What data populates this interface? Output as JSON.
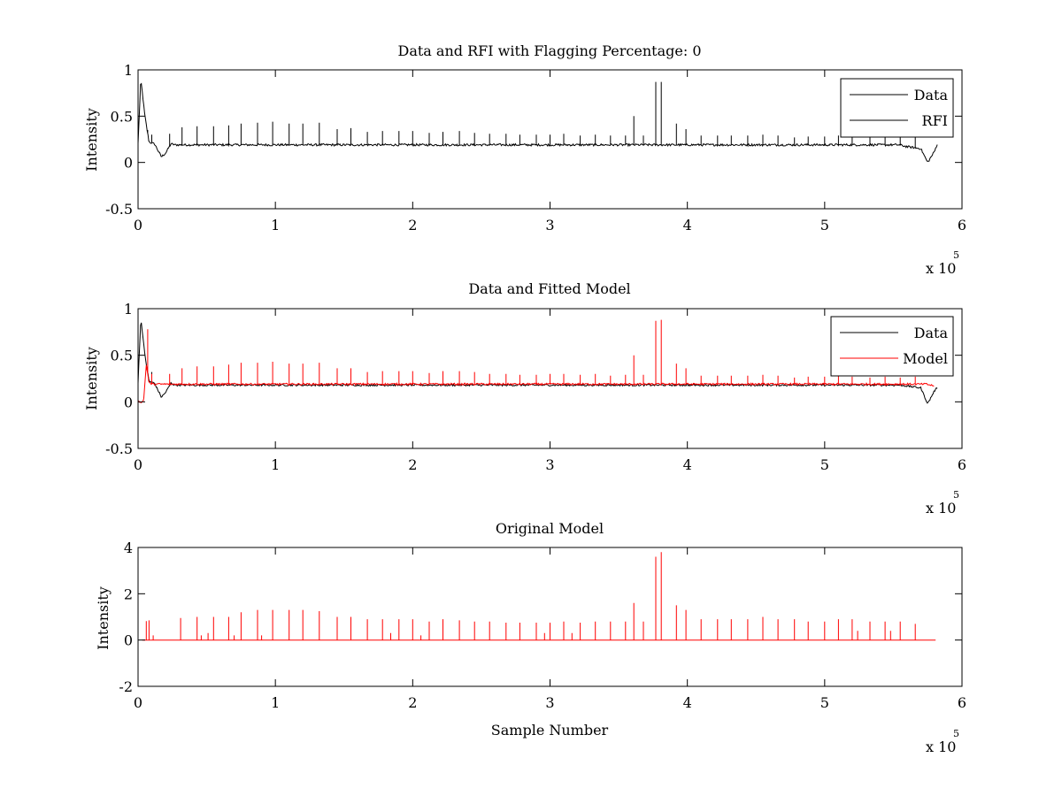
{
  "chart_data": [
    {
      "type": "line",
      "title": "Data and RFI with Flagging Percentage: 0",
      "xlabel": "",
      "ylabel": "Intensity",
      "xlim": [
        0,
        600000
      ],
      "ylim": [
        -0.5,
        1
      ],
      "xticks": [
        0,
        1,
        2,
        3,
        4,
        5,
        6
      ],
      "yticks": [
        -0.5,
        0,
        0.5,
        1
      ],
      "xtick_labels": [
        "0",
        "1",
        "2",
        "3",
        "4",
        "5",
        "6"
      ],
      "ytick_labels": [
        "-0.5",
        "0",
        "0.5",
        "1"
      ],
      "x_exponent": {
        "base": "x 10",
        "power": "5"
      },
      "legend": {
        "position": "top-right",
        "entries": [
          "Data",
          "RFI"
        ]
      },
      "grid": false,
      "series": [
        {
          "name": "Data",
          "color": "#000000",
          "baseline": 0.19,
          "points": [
            [
              0,
              0.2
            ],
            [
              2000,
              0.9
            ],
            [
              5000,
              0.5
            ],
            [
              8000,
              0.22
            ],
            [
              12000,
              0.2
            ],
            [
              17000,
              0.06
            ],
            [
              20000,
              0.1
            ],
            [
              24000,
              0.2
            ],
            [
              560000,
              0.17
            ],
            [
              570000,
              0.15
            ],
            [
              575000,
              0.0
            ],
            [
              580000,
              0.12
            ],
            [
              582000,
              0.2
            ]
          ],
          "spikes": [
            [
              7000,
              0.35
            ],
            [
              10000,
              0.3
            ],
            [
              23000,
              0.31
            ],
            [
              32000,
              0.38
            ],
            [
              43000,
              0.39
            ],
            [
              55000,
              0.39
            ],
            [
              66000,
              0.4
            ],
            [
              75000,
              0.42
            ],
            [
              87000,
              0.43
            ],
            [
              98000,
              0.44
            ],
            [
              110000,
              0.42
            ],
            [
              120000,
              0.42
            ],
            [
              132000,
              0.43
            ],
            [
              145000,
              0.36
            ],
            [
              155000,
              0.37
            ],
            [
              167000,
              0.33
            ],
            [
              178000,
              0.34
            ],
            [
              190000,
              0.34
            ],
            [
              200000,
              0.34
            ],
            [
              212000,
              0.32
            ],
            [
              222000,
              0.33
            ],
            [
              234000,
              0.34
            ],
            [
              245000,
              0.32
            ],
            [
              256000,
              0.31
            ],
            [
              268000,
              0.31
            ],
            [
              278000,
              0.3
            ],
            [
              290000,
              0.3
            ],
            [
              300000,
              0.3
            ],
            [
              310000,
              0.31
            ],
            [
              322000,
              0.29
            ],
            [
              333000,
              0.3
            ],
            [
              344000,
              0.29
            ],
            [
              355000,
              0.29
            ],
            [
              361000,
              0.5
            ],
            [
              368000,
              0.29
            ],
            [
              377000,
              0.87
            ],
            [
              381000,
              0.87
            ],
            [
              392000,
              0.42
            ],
            [
              399000,
              0.36
            ],
            [
              410000,
              0.29
            ],
            [
              422000,
              0.29
            ],
            [
              432000,
              0.29
            ],
            [
              444000,
              0.29
            ],
            [
              455000,
              0.3
            ],
            [
              466000,
              0.29
            ],
            [
              478000,
              0.27
            ],
            [
              488000,
              0.28
            ],
            [
              500000,
              0.28
            ],
            [
              510000,
              0.29
            ],
            [
              520000,
              0.28
            ],
            [
              533000,
              0.27
            ],
            [
              544000,
              0.28
            ],
            [
              555000,
              0.27
            ],
            [
              566000,
              0.28
            ]
          ],
          "noise": 0.012
        }
      ]
    },
    {
      "type": "line",
      "title": "Data and Fitted Model",
      "xlabel": "",
      "ylabel": "Intensity",
      "xlim": [
        0,
        600000
      ],
      "ylim": [
        -0.5,
        1
      ],
      "xticks": [
        0,
        1,
        2,
        3,
        4,
        5,
        6
      ],
      "yticks": [
        -0.5,
        0,
        0.5,
        1
      ],
      "xtick_labels": [
        "0",
        "1",
        "2",
        "3",
        "4",
        "5",
        "6"
      ],
      "ytick_labels": [
        "-0.5",
        "0",
        "0.5",
        "1"
      ],
      "x_exponent": {
        "base": "x 10",
        "power": "5"
      },
      "legend": {
        "position": "top-right",
        "entries": [
          "Data",
          "Model"
        ]
      },
      "grid": false,
      "series": [
        {
          "name": "Data",
          "color": "#000000",
          "baseline": 0.18,
          "points": [
            [
              0,
              0.2
            ],
            [
              2000,
              0.9
            ],
            [
              5000,
              0.5
            ],
            [
              8000,
              0.22
            ],
            [
              12000,
              0.2
            ],
            [
              17000,
              0.05
            ],
            [
              20000,
              0.1
            ],
            [
              24000,
              0.2
            ],
            [
              560000,
              0.17
            ],
            [
              570000,
              0.15
            ],
            [
              575000,
              -0.02
            ],
            [
              580000,
              0.12
            ],
            [
              582000,
              0.15
            ]
          ],
          "spikes": [
            [
              10000,
              0.32
            ]
          ],
          "noise": 0.01
        },
        {
          "name": "Model",
          "color": "#ff0000",
          "baseline": 0.19,
          "points": [
            [
              0,
              0.0
            ],
            [
              4000,
              0.0
            ],
            [
              6000,
              0.4
            ],
            [
              8000,
              0.2
            ],
            [
              580000,
              0.17
            ]
          ],
          "spikes": [
            [
              7000,
              0.78
            ],
            [
              10000,
              0.3
            ],
            [
              23000,
              0.3
            ],
            [
              32000,
              0.36
            ],
            [
              43000,
              0.38
            ],
            [
              55000,
              0.38
            ],
            [
              66000,
              0.4
            ],
            [
              75000,
              0.42
            ],
            [
              87000,
              0.42
            ],
            [
              98000,
              0.43
            ],
            [
              110000,
              0.41
            ],
            [
              120000,
              0.41
            ],
            [
              132000,
              0.42
            ],
            [
              145000,
              0.36
            ],
            [
              155000,
              0.36
            ],
            [
              167000,
              0.32
            ],
            [
              178000,
              0.33
            ],
            [
              190000,
              0.33
            ],
            [
              200000,
              0.33
            ],
            [
              212000,
              0.31
            ],
            [
              222000,
              0.33
            ],
            [
              234000,
              0.33
            ],
            [
              245000,
              0.32
            ],
            [
              256000,
              0.3
            ],
            [
              268000,
              0.3
            ],
            [
              278000,
              0.29
            ],
            [
              290000,
              0.29
            ],
            [
              300000,
              0.3
            ],
            [
              310000,
              0.3
            ],
            [
              322000,
              0.29
            ],
            [
              333000,
              0.3
            ],
            [
              344000,
              0.28
            ],
            [
              355000,
              0.29
            ],
            [
              361000,
              0.5
            ],
            [
              368000,
              0.29
            ],
            [
              377000,
              0.87
            ],
            [
              381000,
              0.88
            ],
            [
              392000,
              0.41
            ],
            [
              399000,
              0.36
            ],
            [
              410000,
              0.28
            ],
            [
              422000,
              0.28
            ],
            [
              432000,
              0.28
            ],
            [
              444000,
              0.28
            ],
            [
              455000,
              0.29
            ],
            [
              466000,
              0.28
            ],
            [
              478000,
              0.26
            ],
            [
              488000,
              0.27
            ],
            [
              500000,
              0.27
            ],
            [
              510000,
              0.28
            ],
            [
              520000,
              0.27
            ],
            [
              533000,
              0.26
            ],
            [
              544000,
              0.27
            ],
            [
              555000,
              0.26
            ],
            [
              566000,
              0.27
            ]
          ],
          "noise": 0.01
        }
      ]
    },
    {
      "type": "line",
      "title": "Original Model",
      "xlabel": "Sample Number",
      "ylabel": "Intensity",
      "xlim": [
        0,
        600000
      ],
      "ylim": [
        -2,
        4
      ],
      "xticks": [
        0,
        1,
        2,
        3,
        4,
        5,
        6
      ],
      "yticks": [
        -2,
        0,
        2,
        4
      ],
      "xtick_labels": [
        "0",
        "1",
        "2",
        "3",
        "4",
        "5",
        "6"
      ],
      "ytick_labels": [
        "-2",
        "0",
        "2",
        "4"
      ],
      "x_exponent": {
        "base": "x 10",
        "power": "5"
      },
      "legend": null,
      "grid": false,
      "series": [
        {
          "color": "#ff0000",
          "baseline": 0.0,
          "points": [
            [
              3000,
              0.0
            ],
            [
              581000,
              0.0
            ]
          ],
          "spikes": [
            [
              6000,
              0.82
            ],
            [
              8000,
              0.85
            ],
            [
              11000,
              0.2
            ],
            [
              31000,
              0.95
            ],
            [
              43000,
              1.0
            ],
            [
              46000,
              0.2
            ],
            [
              51000,
              0.3
            ],
            [
              55000,
              1.0
            ],
            [
              66000,
              1.0
            ],
            [
              70000,
              0.2
            ],
            [
              75000,
              1.2
            ],
            [
              87000,
              1.3
            ],
            [
              90000,
              0.2
            ],
            [
              98000,
              1.3
            ],
            [
              110000,
              1.3
            ],
            [
              120000,
              1.3
            ],
            [
              132000,
              1.25
            ],
            [
              145000,
              1.0
            ],
            [
              155000,
              1.0
            ],
            [
              167000,
              0.9
            ],
            [
              178000,
              0.9
            ],
            [
              184000,
              0.3
            ],
            [
              190000,
              0.9
            ],
            [
              200000,
              0.9
            ],
            [
              206000,
              0.2
            ],
            [
              212000,
              0.8
            ],
            [
              222000,
              0.9
            ],
            [
              234000,
              0.85
            ],
            [
              245000,
              0.8
            ],
            [
              256000,
              0.8
            ],
            [
              268000,
              0.75
            ],
            [
              278000,
              0.75
            ],
            [
              290000,
              0.75
            ],
            [
              296000,
              0.3
            ],
            [
              300000,
              0.75
            ],
            [
              310000,
              0.8
            ],
            [
              316000,
              0.3
            ],
            [
              322000,
              0.75
            ],
            [
              333000,
              0.8
            ],
            [
              344000,
              0.8
            ],
            [
              355000,
              0.8
            ],
            [
              361000,
              1.6
            ],
            [
              368000,
              0.8
            ],
            [
              377000,
              3.6
            ],
            [
              381000,
              3.8
            ],
            [
              392000,
              1.5
            ],
            [
              399000,
              1.3
            ],
            [
              410000,
              0.9
            ],
            [
              422000,
              0.9
            ],
            [
              432000,
              0.9
            ],
            [
              444000,
              0.9
            ],
            [
              455000,
              1.0
            ],
            [
              466000,
              0.9
            ],
            [
              478000,
              0.9
            ],
            [
              488000,
              0.8
            ],
            [
              500000,
              0.8
            ],
            [
              510000,
              0.9
            ],
            [
              520000,
              0.9
            ],
            [
              524000,
              0.4
            ],
            [
              533000,
              0.8
            ],
            [
              544000,
              0.8
            ],
            [
              548000,
              0.4
            ],
            [
              555000,
              0.8
            ],
            [
              566000,
              0.7
            ]
          ],
          "noise": 0.0
        }
      ]
    }
  ]
}
